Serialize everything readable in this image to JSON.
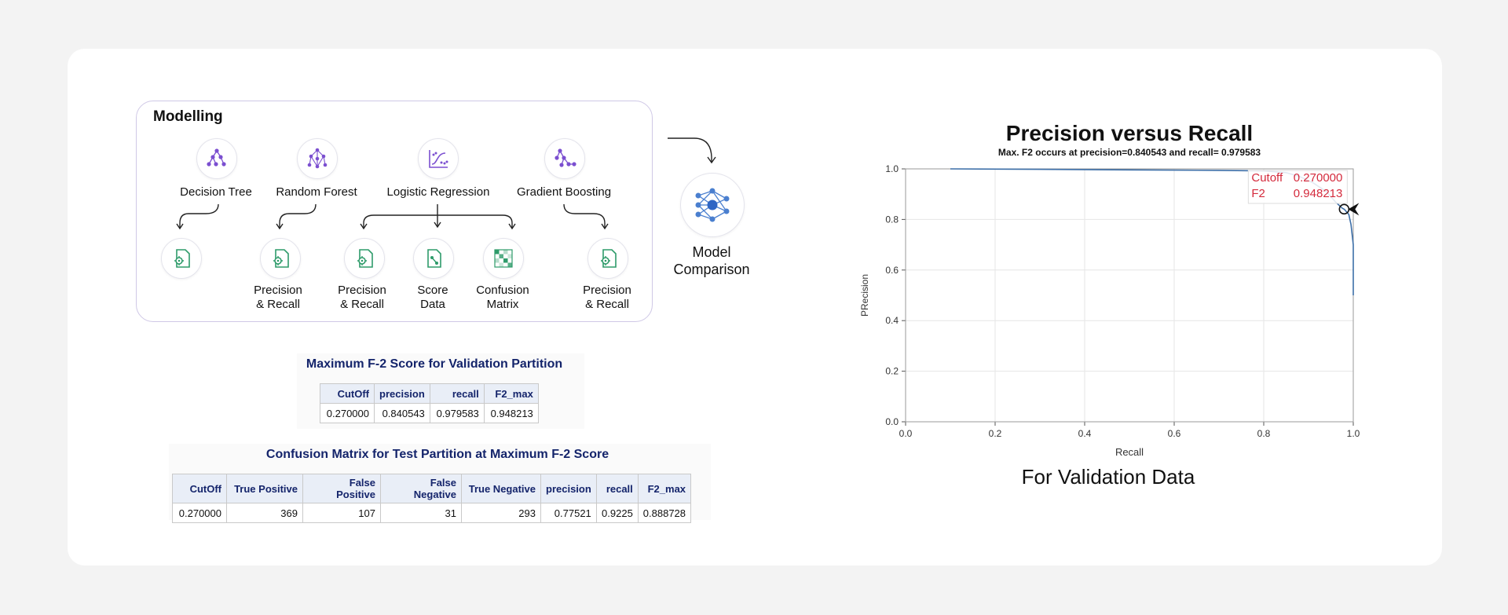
{
  "modelling": {
    "title": "Modelling",
    "models": [
      {
        "name": "Decision Tree",
        "icon": "decision-tree-icon"
      },
      {
        "name": "Random Forest",
        "icon": "random-forest-icon"
      },
      {
        "name": "Logistic Regression",
        "icon": "logistic-regression-icon"
      },
      {
        "name": "Gradient Boosting",
        "icon": "gradient-boosting-icon"
      }
    ],
    "outputs": [
      {
        "label_line1": "",
        "label_line2": "",
        "icon": "precision-recall-icon"
      },
      {
        "label_line1": "Precision",
        "label_line2": "& Recall",
        "icon": "precision-recall-icon"
      },
      {
        "label_line1": "Precision",
        "label_line2": "& Recall",
        "icon": "precision-recall-icon"
      },
      {
        "label_line1": "Score",
        "label_line2": "Data",
        "icon": "score-data-icon"
      },
      {
        "label_line1": "Confusion",
        "label_line2": "Matrix",
        "icon": "confusion-matrix-icon"
      },
      {
        "label_line1": "Precision",
        "label_line2": "& Recall",
        "icon": "precision-recall-icon"
      }
    ],
    "comparison": {
      "line1": "Model",
      "line2": "Comparison",
      "icon": "neural-network-icon"
    }
  },
  "f2_table": {
    "title": "Maximum F-2 Score for Validation Partition",
    "headers": [
      "CutOff",
      "precision",
      "recall",
      "F2_max"
    ],
    "rows": [
      [
        "0.270000",
        "0.840543",
        "0.979583",
        "0.948213"
      ]
    ]
  },
  "confusion_table": {
    "title": "Confusion Matrix for Test Partition at Maximum F-2 Score",
    "headers": [
      "CutOff",
      "True Positive",
      "False Positive",
      "False Negative",
      "True Negative",
      "precision",
      "recall",
      "F2_max"
    ],
    "rows": [
      [
        "0.270000",
        "369",
        "107",
        "31",
        "293",
        "0.77521",
        "0.9225",
        "0.888728"
      ]
    ]
  },
  "chart_data": {
    "type": "line",
    "title": "Precision versus Recall",
    "subtitle": "Max. F2 occurs at precision=0.840543 and recall= 0.979583",
    "xlabel": "Recall",
    "ylabel": "PRecision",
    "xlim": [
      0,
      1
    ],
    "ylim": [
      0,
      1
    ],
    "xticks": [
      "0.0",
      "0.2",
      "0.4",
      "0.6",
      "0.8",
      "1.0"
    ],
    "yticks": [
      "0.0",
      "0.2",
      "0.4",
      "0.6",
      "0.8",
      "1.0"
    ],
    "grid": true,
    "line_color": "#3d6fa8",
    "series": [
      {
        "x": [
          0.1,
          0.3,
          0.5,
          0.7,
          0.8,
          0.85,
          0.88,
          0.91,
          0.94,
          0.96,
          0.975,
          0.98,
          0.99,
          0.995,
          1.0,
          1.0
        ],
        "y": [
          1.0,
          0.998,
          0.996,
          0.994,
          0.992,
          0.985,
          0.97,
          0.945,
          0.91,
          0.87,
          0.845,
          0.84,
          0.82,
          0.78,
          0.7,
          0.5
        ]
      }
    ],
    "marker": {
      "x": 0.979583,
      "y": 0.840543
    },
    "annotation": {
      "cutoff_label": "Cutoff",
      "cutoff_value": "0.270000",
      "f2_label": "F2",
      "f2_value": "0.948213",
      "color": "#d42a3c"
    },
    "caption": "For Validation Data"
  }
}
